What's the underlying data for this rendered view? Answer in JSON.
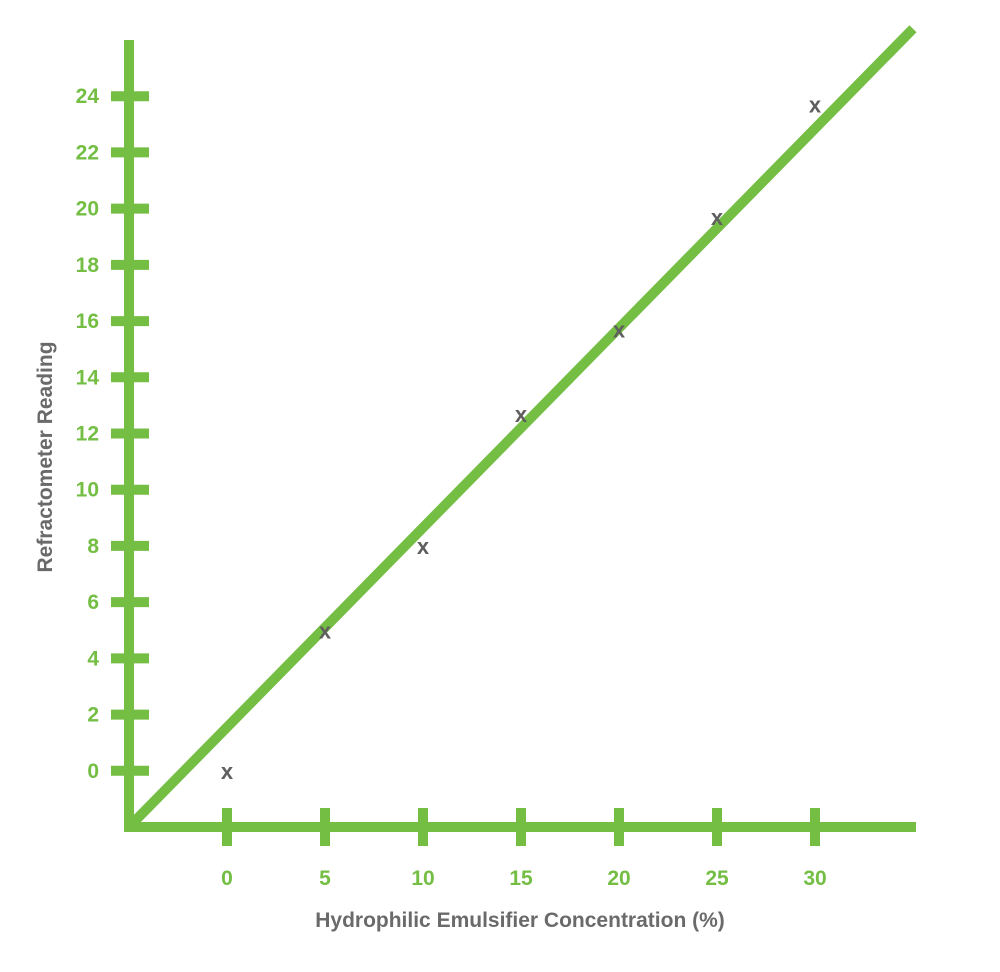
{
  "chart_data": {
    "type": "scatter",
    "xlabel": "Hydrophilic Emulsifier Concentration (%)",
    "ylabel": "Refractometer Reading",
    "x_ticks": [
      0,
      5,
      10,
      15,
      20,
      25,
      30
    ],
    "y_ticks": [
      0,
      2,
      4,
      6,
      8,
      10,
      12,
      14,
      16,
      18,
      20,
      22,
      24
    ],
    "xlim": [
      -5,
      35
    ],
    "ylim": [
      -2,
      26
    ],
    "grid": false,
    "legend": "none",
    "marker_symbol": "x",
    "series": [
      {
        "x": [
          0,
          5,
          10,
          15,
          20,
          25,
          30
        ],
        "y": [
          0,
          5,
          8,
          12.7,
          15.7,
          19.7,
          23.7
        ]
      }
    ],
    "trend_line": {
      "x": [
        -5,
        35
      ],
      "y": [
        -2,
        26.4
      ]
    },
    "colors": {
      "axis": "#74be44",
      "tick_labels": "#74be44",
      "axis_titles": "#6a6a6a",
      "markers": "#5f5f5f"
    }
  }
}
